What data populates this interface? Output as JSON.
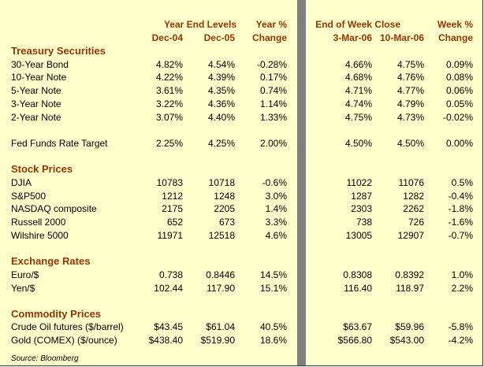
{
  "header": {
    "year_end_levels": "Year End Levels",
    "year_change": [
      "Year %",
      "Change"
    ],
    "end_of_week_close": "End of Week Close",
    "week_change": [
      "Week %",
      "Change"
    ],
    "columns": [
      "Dec-04",
      "Dec-05",
      "3-Mar-06",
      "10-Mar-06"
    ]
  },
  "sections": [
    {
      "title": "Treasury Securities",
      "rows": [
        [
          "30-Year Bond",
          "4.82%",
          "4.54%",
          "-0.28%",
          "4.66%",
          "4.75%",
          "0.09%"
        ],
        [
          "10-Year Note",
          "4.22%",
          "4.39%",
          "0.17%",
          "4.68%",
          "4.76%",
          "0.08%"
        ],
        [
          "5-Year Note",
          "3.61%",
          "4.35%",
          "0.74%",
          "4.71%",
          "4.77%",
          "0.06%"
        ],
        [
          "3-Year Note",
          "3.22%",
          "4.36%",
          "1.14%",
          "4.74%",
          "4.79%",
          "0.05%"
        ],
        [
          "2-Year Note",
          "3.07%",
          "4.40%",
          "1.33%",
          "4.75%",
          "4.73%",
          "-0.02%"
        ]
      ]
    },
    {
      "rows": [
        [
          "Fed Funds Rate Target",
          "2.25%",
          "4.25%",
          "2.00%",
          "4.50%",
          "4.50%",
          "0.00%"
        ]
      ]
    },
    {
      "title": "Stock Prices",
      "rows": [
        [
          "DJIA",
          "10783",
          "10718",
          "-0.6%",
          "11022",
          "11076",
          "0.5%"
        ],
        [
          "S&P500",
          "1212",
          "1248",
          "3.0%",
          "1287",
          "1282",
          "-0.4%"
        ],
        [
          "NASDAQ composite",
          "2175",
          "2205",
          "1.4%",
          "2303",
          "2262",
          "-1.8%"
        ],
        [
          "Russell 2000",
          "652",
          "673",
          "3.3%",
          "738",
          "726",
          "-1.6%"
        ],
        [
          "Wilshire 5000",
          "11971",
          "12518",
          "4.6%",
          "13005",
          "12907",
          "-0.7%"
        ]
      ]
    },
    {
      "title": "Exchange Rates",
      "rows": [
        [
          "Euro/$",
          "0.738",
          "0.8446",
          "14.5%",
          "0.8308",
          "0.8392",
          "1.0%"
        ],
        [
          "Yen/$",
          "102.44",
          "117.90",
          "15.1%",
          "116.40",
          "118.97",
          "2.2%"
        ]
      ]
    },
    {
      "title": "Commodity Prices",
      "rows": [
        [
          "Crude Oil futures ($/barrel)",
          "$43.45",
          "$61.04",
          "40.5%",
          "$63.67",
          "$59.96",
          "-5.8%"
        ],
        [
          "Gold (COMEX) ($/ounce)",
          "$438.40",
          "$519.90",
          "18.6%",
          "$566.80",
          "$543.00",
          "-4.2%"
        ]
      ]
    }
  ],
  "source": "Source: Bloomberg"
}
